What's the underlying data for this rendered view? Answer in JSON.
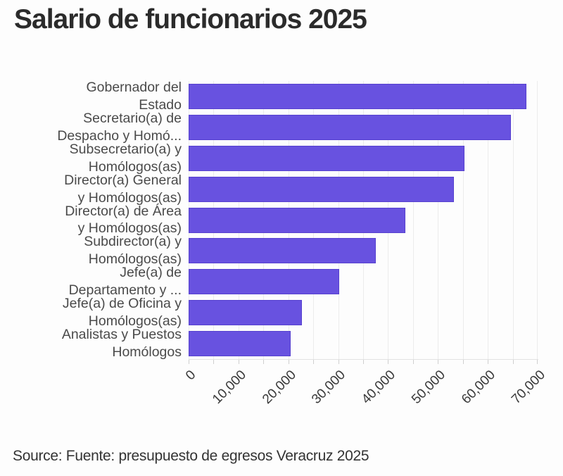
{
  "title": "Salario de funcionarios 2025",
  "source": "Source: Fuente: presupuesto de egresos Veracruz 2025",
  "colors": {
    "bar": "#6852e0",
    "bar_border": "#5742cf",
    "grid": "#ececec",
    "axis": "#e2e2e2",
    "tick": "#cfcfcf",
    "title_text": "#2b2b2b",
    "label_text": "#4a4a4a",
    "tick_text": "#3a3a3a",
    "background": "#fdfdfd"
  },
  "chart_data": {
    "type": "bar",
    "orientation": "horizontal",
    "title": "Salario de funcionarios 2025",
    "categories": [
      "Gobernador del Estado",
      "Secretario(a) de Despacho y Homó...",
      "Subsecretario(a) y Homólogos(as)",
      "Director(a) General y Homólogos(as)",
      "Director(a) de Área y Homólogos(as)",
      "Subdirector(a) y Homólogos(as)",
      "Jefe(a) de Departamento y ...",
      "Jefe(a) de Oficina y Homólogos(as)",
      "Analistas y Puestos Homólogos"
    ],
    "category_display_lines": [
      [
        "Gobernador del",
        "Estado"
      ],
      [
        "Secretario(a) de",
        "Despacho y Homó..."
      ],
      [
        "Subsecretario(a) y",
        "Homólogos(as)"
      ],
      [
        "Director(a) General",
        "y Homólogos(as)"
      ],
      [
        "Director(a) de Área",
        "y Homólogos(as)"
      ],
      [
        "Subdirector(a) y",
        "Homólogos(as)"
      ],
      [
        "Jefe(a) de",
        "Departamento y ..."
      ],
      [
        "Jefe(a) de Oficina y",
        "Homólogos(as)"
      ],
      [
        "Analistas y Puestos",
        "Homólogos"
      ]
    ],
    "values": [
      67800,
      64600,
      55300,
      53200,
      43400,
      37500,
      30200,
      22700,
      20400
    ],
    "xlabel": "",
    "ylabel": "",
    "xlim": [
      0,
      70000
    ],
    "xticks": [
      0,
      10000,
      20000,
      30000,
      40000,
      50000,
      60000,
      70000
    ],
    "xtick_labels": [
      "0",
      "10,000",
      "20,000",
      "30,000",
      "40,000",
      "50,000",
      "60,000",
      "70,000"
    ],
    "minor_grid_step": 5000,
    "grid": true,
    "legend": false,
    "source": "Fuente: presupuesto de egresos Veracruz 2025"
  }
}
